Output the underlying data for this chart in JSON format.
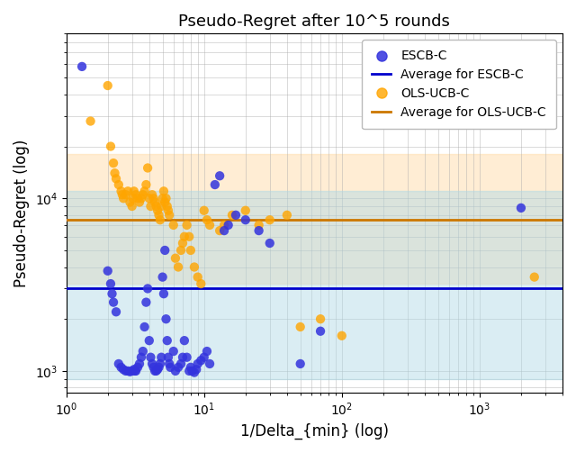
{
  "title": "Pseudo-Regret after 10^5 rounds",
  "xlabel": "1/Delta_{min} (log)",
  "ylabel": "Pseudo-Regret (log)",
  "xlim": [
    1.0,
    4000
  ],
  "ylim": [
    750,
    90000
  ],
  "escb_x": [
    1.3,
    2.0,
    2.1,
    2.15,
    2.2,
    2.3,
    2.4,
    2.5,
    2.6,
    2.7,
    2.8,
    2.9,
    3.0,
    3.1,
    3.15,
    3.2,
    3.3,
    3.4,
    3.5,
    3.6,
    3.7,
    3.8,
    3.9,
    4.0,
    4.1,
    4.2,
    4.3,
    4.4,
    4.5,
    4.6,
    4.7,
    4.8,
    4.9,
    5.0,
    5.1,
    5.2,
    5.3,
    5.4,
    5.5,
    5.6,
    5.7,
    6.0,
    6.2,
    6.5,
    6.8,
    7.0,
    7.2,
    7.5,
    7.8,
    8.0,
    8.2,
    8.5,
    8.8,
    9.0,
    9.5,
    10.0,
    10.5,
    11.0,
    12.0,
    13.0,
    14.0,
    15.0,
    17.0,
    20.0,
    25.0,
    30.0,
    50.0,
    70.0,
    2000.0
  ],
  "escb_y": [
    58000,
    3800,
    3200,
    2800,
    2500,
    2200,
    1100,
    1050,
    1020,
    1000,
    1000,
    990,
    1000,
    1020,
    1000,
    1000,
    1050,
    1100,
    1200,
    1300,
    1800,
    2500,
    3000,
    1500,
    1200,
    1100,
    1050,
    1000,
    1000,
    1020,
    1050,
    1100,
    1200,
    3500,
    2800,
    5000,
    2000,
    1500,
    1200,
    1100,
    1050,
    1300,
    1000,
    1050,
    1100,
    1200,
    1500,
    1200,
    1000,
    1050,
    1000,
    980,
    1020,
    1100,
    1150,
    1200,
    1300,
    1100,
    12000,
    13500,
    6500,
    7000,
    8000,
    7500,
    6500,
    5500,
    1100,
    1700,
    8800
  ],
  "ols_x": [
    1.5,
    2.0,
    2.1,
    2.2,
    2.25,
    2.3,
    2.4,
    2.5,
    2.55,
    2.6,
    2.7,
    2.8,
    2.9,
    3.0,
    3.05,
    3.1,
    3.2,
    3.3,
    3.4,
    3.5,
    3.6,
    3.7,
    3.8,
    3.9,
    4.0,
    4.1,
    4.2,
    4.3,
    4.4,
    4.5,
    4.6,
    4.7,
    4.8,
    4.9,
    5.0,
    5.1,
    5.2,
    5.3,
    5.4,
    5.5,
    5.6,
    6.0,
    6.2,
    6.5,
    6.8,
    7.0,
    7.2,
    7.5,
    7.8,
    8.0,
    8.5,
    9.0,
    9.5,
    10.0,
    10.5,
    11.0,
    13.0,
    14.0,
    16.0,
    20.0,
    25.0,
    30.0,
    40.0,
    50.0,
    70.0,
    100.0,
    2500.0
  ],
  "ols_y": [
    28000,
    45000,
    20000,
    16000,
    14000,
    13000,
    12000,
    11000,
    10500,
    10000,
    10500,
    11000,
    9500,
    9000,
    10000,
    11000,
    10500,
    10000,
    9500,
    10000,
    10500,
    11000,
    12000,
    15000,
    10000,
    9000,
    10500,
    10000,
    9500,
    9000,
    8500,
    8000,
    7500,
    9000,
    10000,
    11000,
    9500,
    10000,
    9000,
    8500,
    8000,
    7000,
    4500,
    4000,
    5000,
    5500,
    6000,
    7000,
    6000,
    5000,
    4000,
    3500,
    3200,
    8500,
    7500,
    7000,
    6500,
    7000,
    8000,
    8500,
    7000,
    7500,
    8000,
    1800,
    2000,
    1600,
    3500
  ],
  "escb_avg": 3000,
  "escb_band_low": 900,
  "escb_band_high": 11000,
  "ols_avg": 7500,
  "ols_band_low": 3200,
  "ols_band_high": 18000,
  "escb_color": "#3333dd",
  "ols_color": "#FFA500",
  "escb_avg_color": "#0000cc",
  "ols_avg_color": "#CC7700",
  "escb_fill_color": "#add8e6",
  "ols_fill_color": "#ffd9a0",
  "escb_fill_alpha": 0.45,
  "ols_fill_alpha": 0.45,
  "marker_size": 55,
  "escb_marker_alpha": 0.85,
  "ols_marker_alpha": 0.8,
  "grid_color": "#aaaaaa",
  "grid_alpha": 0.6,
  "avg_linewidth": 2.0
}
